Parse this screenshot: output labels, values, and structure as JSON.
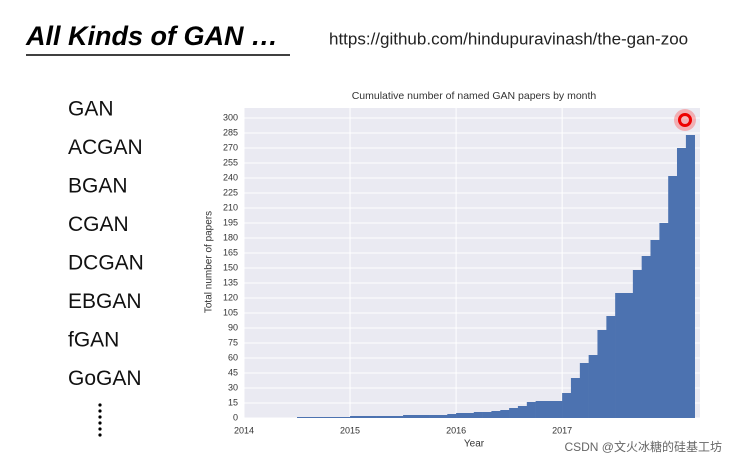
{
  "title": "All Kinds of GAN …",
  "url": "https://github.com/hindupuravinash/the-gan-zoo",
  "list": [
    "GAN",
    "ACGAN",
    "BGAN",
    "CGAN",
    "DCGAN",
    "EBGAN",
    "fGAN",
    "GoGAN"
  ],
  "watermark": "CSDN @文火冰糖的硅基工坊",
  "chart_data": {
    "type": "histogram",
    "title": "Cumulative number of named GAN papers by month",
    "x_label": "Year",
    "y_label": "Total number of papers",
    "color": "#4c72b0",
    "grid": true,
    "bins": [
      2014.5,
      2014.583,
      2014.667,
      2014.75,
      2014.833,
      2014.917,
      2015,
      2015.083,
      2015.167,
      2015.25,
      2015.333,
      2015.417,
      2015.5,
      2015.583,
      2015.667,
      2015.75,
      2015.833,
      2015.917,
      2016,
      2016.083,
      2016.167,
      2016.25,
      2016.333,
      2016.417,
      2016.5,
      2016.583,
      2016.667,
      2016.75,
      2016.833,
      2016.917,
      2017,
      2017.083,
      2017.167,
      2017.25,
      2017.333,
      2017.417,
      2017.5,
      2017.583,
      2017.667,
      2017.75,
      2017.833,
      2017.917,
      2018,
      2018.083,
      2018.167,
      2018.25
    ],
    "values": [
      1,
      1,
      1,
      1,
      1,
      1,
      2,
      2,
      2,
      2,
      2,
      2,
      3,
      3,
      3,
      3,
      3,
      4,
      5,
      5,
      6,
      6,
      7,
      8,
      10,
      12,
      16,
      17,
      17,
      17,
      25,
      40,
      55,
      63,
      88,
      102,
      125,
      125,
      148,
      162,
      178,
      195,
      242,
      270,
      283
    ],
    "xlim": [
      2014,
      2018.3
    ],
    "xticks": [
      2014,
      2015,
      2016,
      2017
    ],
    "ylim": [
      0,
      310
    ],
    "yticks": [
      0,
      15,
      30,
      45,
      60,
      75,
      90,
      105,
      120,
      135,
      150,
      165,
      180,
      195,
      210,
      225,
      240,
      255,
      270,
      285,
      300
    ]
  }
}
